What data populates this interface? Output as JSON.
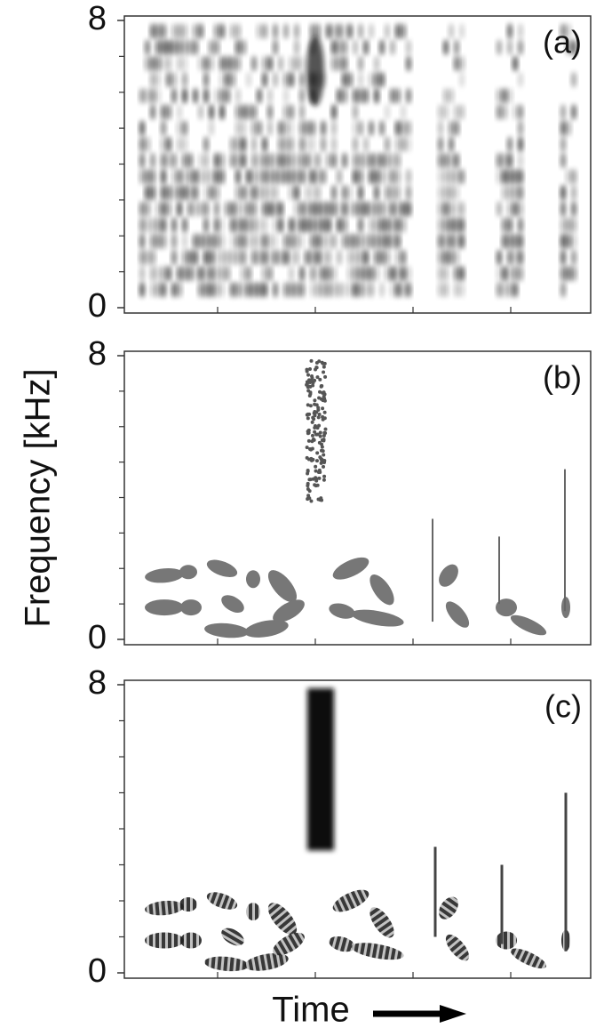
{
  "chart_data": [
    {
      "type": "spectrogram",
      "label": "(a)",
      "ylim": [
        0,
        8
      ],
      "yticks": [
        0,
        8
      ],
      "yminorticks": [
        1,
        2,
        3,
        4,
        5,
        6,
        7
      ]
    },
    {
      "type": "spectrogram",
      "label": "(b)",
      "ylim": [
        0,
        8
      ],
      "yticks": [
        0,
        8
      ],
      "yminorticks": [
        1,
        2,
        3,
        4,
        5,
        6,
        7
      ]
    },
    {
      "type": "spectrogram",
      "label": "(c)",
      "ylim": [
        0,
        8
      ],
      "yticks": [
        0,
        8
      ],
      "yminorticks": [
        1,
        2,
        3,
        4,
        5,
        6,
        7
      ]
    }
  ],
  "y_label": "Frequency [kHz]",
  "x_label": "Time"
}
